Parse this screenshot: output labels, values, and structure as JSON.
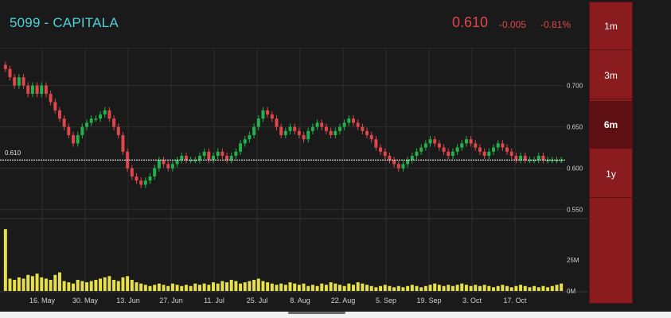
{
  "header": {
    "ticker": "5099 - CAPITALA",
    "price": "0.610",
    "change": "-0.005",
    "change_pct": "-0.81%"
  },
  "ranges": [
    {
      "label": "1m",
      "selected": false
    },
    {
      "label": "3m",
      "selected": false
    },
    {
      "label": "6m",
      "selected": true
    },
    {
      "label": "1y",
      "selected": false
    }
  ],
  "colors": {
    "up": "#22b24c",
    "down": "#e0474c",
    "volume": "#e8e04a",
    "ticker": "#4fd1d9",
    "range_panel": "#8a1b1f"
  },
  "chart_data": [
    {
      "type": "candlestick",
      "x_tick_labels": [
        "16. May",
        "30. May",
        "13. Jun",
        "27. Jun",
        "11. Jul",
        "25. Jul",
        "8. Aug",
        "22. Aug",
        "5. Sep",
        "19. Sep",
        "3. Oct",
        "17. Oct"
      ],
      "y_ticks": [
        0.55,
        0.6,
        0.65,
        0.7
      ],
      "y_tick_labels": [
        "0.550",
        "0.600",
        "0.650",
        "0.700"
      ],
      "ylim": [
        0.54,
        0.74
      ],
      "last_price": 0.61,
      "last_price_label": "0.610",
      "grid": true,
      "close": [
        0.72,
        0.71,
        0.7,
        0.71,
        0.7,
        0.69,
        0.7,
        0.69,
        0.7,
        0.69,
        0.68,
        0.67,
        0.66,
        0.65,
        0.64,
        0.63,
        0.64,
        0.65,
        0.655,
        0.66,
        0.66,
        0.665,
        0.67,
        0.66,
        0.65,
        0.64,
        0.62,
        0.6,
        0.59,
        0.585,
        0.58,
        0.585,
        0.59,
        0.6,
        0.61,
        0.605,
        0.6,
        0.605,
        0.61,
        0.615,
        0.61,
        0.61,
        0.61,
        0.615,
        0.62,
        0.61,
        0.615,
        0.62,
        0.615,
        0.61,
        0.615,
        0.62,
        0.63,
        0.635,
        0.64,
        0.65,
        0.66,
        0.67,
        0.665,
        0.66,
        0.65,
        0.64,
        0.645,
        0.65,
        0.645,
        0.64,
        0.635,
        0.645,
        0.65,
        0.655,
        0.65,
        0.645,
        0.64,
        0.645,
        0.65,
        0.655,
        0.66,
        0.655,
        0.65,
        0.645,
        0.64,
        0.635,
        0.625,
        0.62,
        0.615,
        0.61,
        0.605,
        0.6,
        0.605,
        0.61,
        0.615,
        0.62,
        0.625,
        0.63,
        0.635,
        0.63,
        0.625,
        0.62,
        0.615,
        0.62,
        0.625,
        0.63,
        0.635,
        0.63,
        0.625,
        0.62,
        0.615,
        0.62,
        0.625,
        0.63,
        0.625,
        0.62,
        0.615,
        0.61,
        0.615,
        0.61,
        0.61,
        0.61,
        0.615,
        0.61,
        0.61,
        0.61,
        0.61,
        0.61
      ],
      "volume_unit": "M",
      "volume_ticks": [
        0,
        25
      ],
      "volume_tick_labels": [
        "0M",
        "25M"
      ],
      "volume": [
        50,
        10,
        9,
        11,
        10,
        13,
        12,
        14,
        11,
        10,
        9,
        13,
        15,
        8,
        7,
        6,
        9,
        8,
        7,
        8,
        9,
        10,
        11,
        12,
        9,
        8,
        11,
        12,
        9,
        7,
        6,
        5,
        4,
        5,
        6,
        5,
        4,
        6,
        5,
        4,
        5,
        4,
        6,
        5,
        6,
        5,
        7,
        6,
        8,
        7,
        9,
        8,
        6,
        7,
        8,
        9,
        10,
        8,
        7,
        6,
        5,
        6,
        5,
        7,
        6,
        5,
        6,
        4,
        5,
        4,
        6,
        5,
        7,
        6,
        5,
        4,
        6,
        5,
        7,
        6,
        5,
        4,
        3,
        4,
        5,
        4,
        3,
        4,
        3,
        4,
        5,
        4,
        3,
        4,
        5,
        6,
        5,
        4,
        5,
        4,
        5,
        6,
        5,
        4,
        5,
        4,
        5,
        4,
        3,
        4,
        5,
        4,
        3,
        4,
        5,
        4,
        3,
        4,
        3,
        4,
        3,
        4,
        5,
        6
      ]
    }
  ]
}
